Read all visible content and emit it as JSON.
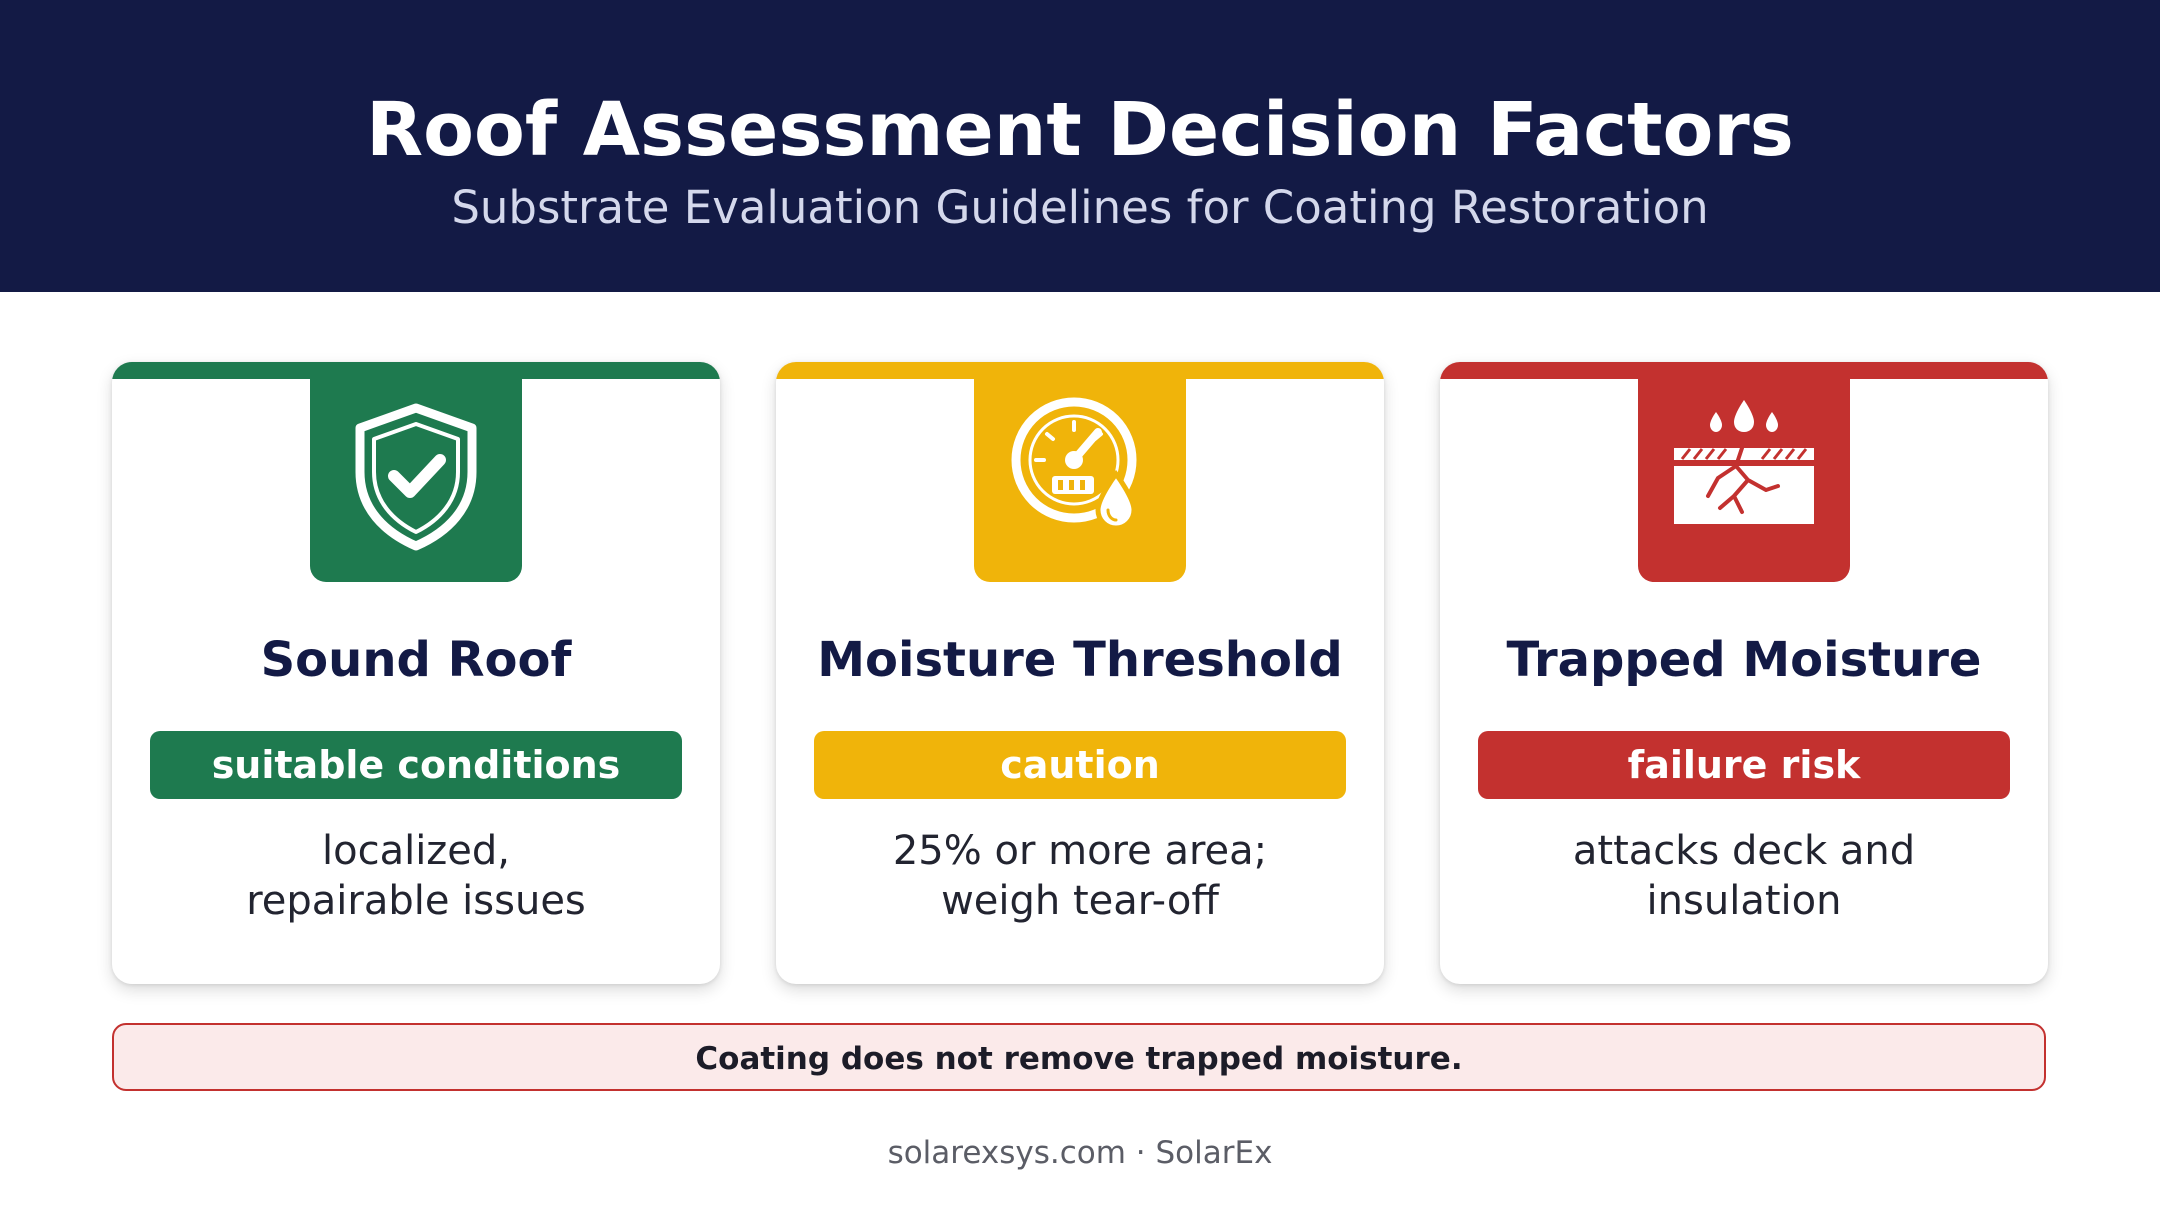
{
  "header": {
    "title": "Roof Assessment Decision Factors",
    "subtitle": "Substrate Evaluation Guidelines for Coating Restoration"
  },
  "cards": [
    {
      "title": "Sound Roof",
      "status": "suitable conditions",
      "description_lines": [
        "localized,",
        "repairable issues"
      ],
      "icon": "shield-check-icon",
      "color": "#1e7a4f"
    },
    {
      "title": "Moisture Threshold",
      "status": "caution",
      "description_lines": [
        "25% or more area;",
        "weigh tear-off"
      ],
      "icon": "moisture-gauge-icon",
      "color": "#f0b40a"
    },
    {
      "title": "Trapped Moisture",
      "status": "failure risk",
      "description_lines": [
        "attacks deck and",
        "insulation"
      ],
      "icon": "cracked-deck-drops-icon",
      "color": "#c3312f"
    }
  ],
  "notice": {
    "text": "Coating does not remove trapped moisture."
  },
  "footer": {
    "text": "solarexsys.com · SolarEx"
  },
  "colors": {
    "header_bg": "#131a45",
    "notice_bg": "#fbeaea",
    "notice_border": "#c3312f"
  }
}
